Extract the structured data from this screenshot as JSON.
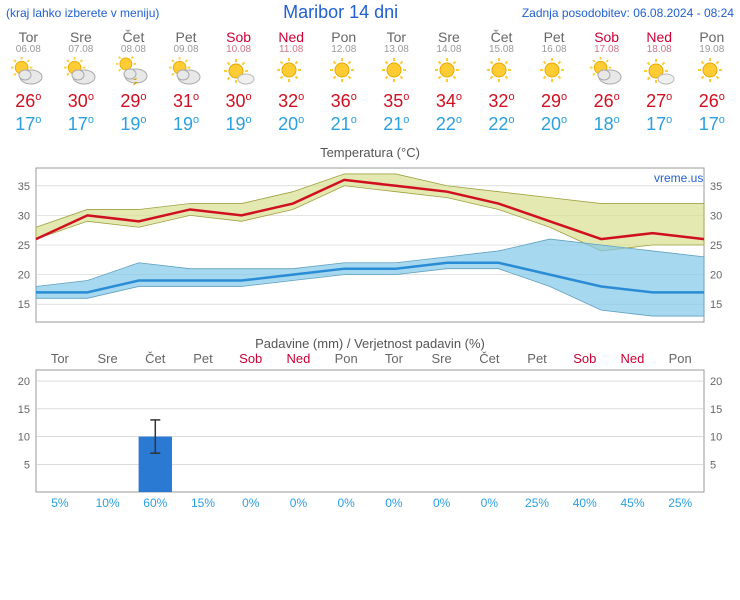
{
  "header": {
    "left": "(kraj lahko izberete v meniju)",
    "center": "Maribor 14 dni",
    "right": "Zadnja posodobitev: 06.08.2024 - 08:24"
  },
  "colors": {
    "link": "#2060d0",
    "weekend": "#cc0033",
    "weekday": "#666666",
    "hi": "#d01020",
    "lo": "#2ba0e0",
    "grid": "#c8c8c8",
    "hi_band": "#d8e090",
    "hi_band_stroke": "#a0a040",
    "lo_band": "#80c8e8",
    "lo_band_stroke": "#60a0c0",
    "bar": "#2a7ad4",
    "watermark": "#2060d0"
  },
  "days": [
    {
      "name": "Tor",
      "date": "06.08",
      "weekend": false,
      "icon": "partly",
      "hi": 26,
      "lo": 17,
      "prob": 5,
      "precip": 0,
      "err": 0
    },
    {
      "name": "Sre",
      "date": "07.08",
      "weekend": false,
      "icon": "partly",
      "hi": 30,
      "lo": 17,
      "prob": 10,
      "precip": 0,
      "err": 0
    },
    {
      "name": "Čet",
      "date": "08.08",
      "weekend": false,
      "icon": "storm",
      "hi": 29,
      "lo": 19,
      "prob": 60,
      "precip": 10,
      "err": 3
    },
    {
      "name": "Pet",
      "date": "09.08",
      "weekend": false,
      "icon": "partly",
      "hi": 31,
      "lo": 19,
      "prob": 15,
      "precip": 0,
      "err": 0
    },
    {
      "name": "Sob",
      "date": "10.08",
      "weekend": true,
      "icon": "mostsun",
      "hi": 30,
      "lo": 19,
      "prob": 0,
      "precip": 0,
      "err": 0
    },
    {
      "name": "Ned",
      "date": "11.08",
      "weekend": true,
      "icon": "sun",
      "hi": 32,
      "lo": 20,
      "prob": 0,
      "precip": 0,
      "err": 0
    },
    {
      "name": "Pon",
      "date": "12.08",
      "weekend": false,
      "icon": "sun",
      "hi": 36,
      "lo": 21,
      "prob": 0,
      "precip": 0,
      "err": 0
    },
    {
      "name": "Tor",
      "date": "13.08",
      "weekend": false,
      "icon": "sun",
      "hi": 35,
      "lo": 21,
      "prob": 0,
      "precip": 0,
      "err": 0
    },
    {
      "name": "Sre",
      "date": "14.08",
      "weekend": false,
      "icon": "sun",
      "hi": 34,
      "lo": 22,
      "prob": 0,
      "precip": 0,
      "err": 0
    },
    {
      "name": "Čet",
      "date": "15.08",
      "weekend": false,
      "icon": "sun",
      "hi": 32,
      "lo": 22,
      "prob": 0,
      "precip": 0,
      "err": 0
    },
    {
      "name": "Pet",
      "date": "16.08",
      "weekend": false,
      "icon": "sun",
      "hi": 29,
      "lo": 20,
      "prob": 25,
      "precip": 0,
      "err": 0
    },
    {
      "name": "Sob",
      "date": "17.08",
      "weekend": true,
      "icon": "partly",
      "hi": 26,
      "lo": 18,
      "prob": 40,
      "precip": 0,
      "err": 0
    },
    {
      "name": "Ned",
      "date": "18.08",
      "weekend": true,
      "icon": "mostsun",
      "hi": 27,
      "lo": 17,
      "prob": 45,
      "precip": 0,
      "err": 0
    },
    {
      "name": "Pon",
      "date": "19.08",
      "weekend": false,
      "icon": "sun",
      "hi": 26,
      "lo": 17,
      "prob": 25,
      "precip": 0,
      "err": 0
    }
  ],
  "temp_chart": {
    "title": "Temperatura (°C)",
    "ymin": 12,
    "ymax": 38,
    "yticks": [
      15,
      20,
      25,
      30,
      35
    ],
    "watermark": "vreme.us",
    "hi_band_upper": [
      28,
      31,
      31,
      32,
      32,
      34,
      37,
      37,
      35,
      34,
      33,
      32,
      32,
      32
    ],
    "hi_band_lower": [
      26,
      29,
      28,
      30,
      29,
      31,
      35,
      34,
      33,
      31,
      28,
      24,
      25,
      25
    ],
    "lo_band_upper": [
      18,
      19,
      22,
      21,
      21,
      21,
      22,
      22,
      23,
      24,
      26,
      25,
      24,
      23
    ],
    "lo_band_lower": [
      16,
      16,
      18,
      18,
      18,
      19,
      20,
      20,
      21,
      21,
      18,
      14,
      13,
      13
    ]
  },
  "precip_chart": {
    "title": "Padavine (mm) / Verjetnost padavin (%)",
    "ymin": 0,
    "ymax": 22,
    "yticks": [
      5,
      10,
      15,
      20
    ]
  }
}
